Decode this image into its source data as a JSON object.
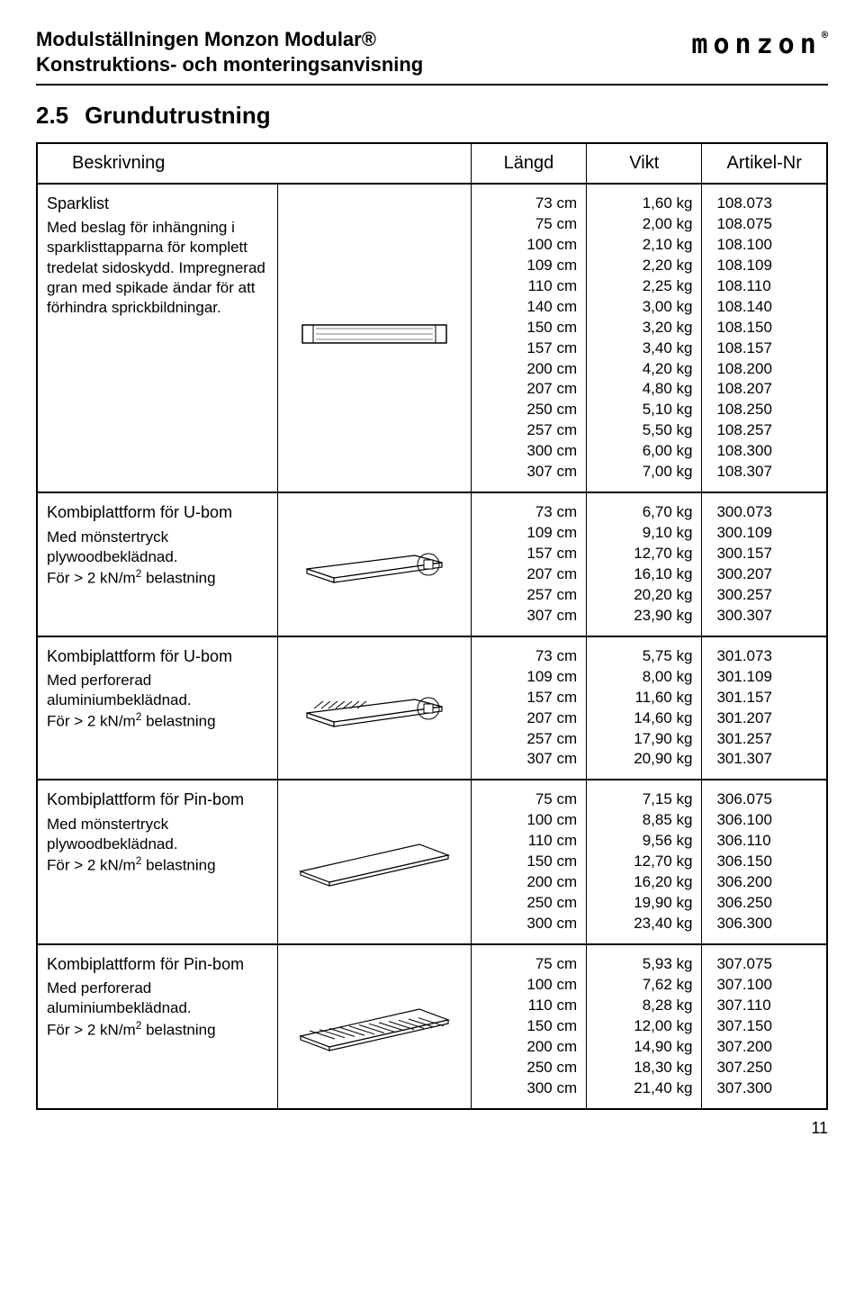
{
  "header": {
    "line1": "Modulställningen Monzon Modular®",
    "line2": "Konstruktions- och monteringsanvisning",
    "logo_text": "monzon",
    "logo_reg": "®"
  },
  "section": {
    "number": "2.5",
    "title": "Grundutrustning"
  },
  "columns": {
    "desc": "Beskrivning",
    "length": "Längd",
    "weight": "Vikt",
    "article": "Artikel-Nr"
  },
  "rows": [
    {
      "desc_title": "Sparklist",
      "desc_body": "Med beslag för inhängning i sparklisttapparna för komplett tredelat sidoskydd. Impregnerad gran med spikade ändar för att förhindra sprickbildningar.",
      "diagram": "sparklist",
      "length": [
        "73 cm",
        "75 cm",
        "100 cm",
        "109 cm",
        "110 cm",
        "140 cm",
        "150 cm",
        "157 cm",
        "200 cm",
        "207 cm",
        "250 cm",
        "257 cm",
        "300 cm",
        "307 cm"
      ],
      "weight": [
        "1,60 kg",
        "2,00 kg",
        "2,10 kg",
        "2,20 kg",
        "2,25 kg",
        "3,00 kg",
        "3,20 kg",
        "3,40 kg",
        "4,20 kg",
        "4,80 kg",
        "5,10 kg",
        "5,50 kg",
        "6,00 kg",
        "7,00 kg"
      ],
      "article": [
        "108.073",
        "108.075",
        "108.100",
        "108.109",
        "108.110",
        "108.140",
        "108.150",
        "108.157",
        "108.200",
        "108.207",
        "108.250",
        "108.257",
        "108.300",
        "108.307"
      ]
    },
    {
      "desc_title": "Kombiplattform för U-bom",
      "desc_body": "Med mönstertryck plywoodbeklädnad.\nFör > 2 kN/m² belastning",
      "diagram": "plywood-u",
      "length": [
        "73 cm",
        "109 cm",
        "157 cm",
        "207 cm",
        "257 cm",
        "307 cm"
      ],
      "weight": [
        "6,70 kg",
        "9,10 kg",
        "12,70 kg",
        "16,10 kg",
        "20,20 kg",
        "23,90 kg"
      ],
      "article": [
        "300.073",
        "300.109",
        "300.157",
        "300.207",
        "300.257",
        "300.307"
      ]
    },
    {
      "desc_title": "Kombiplattform för U-bom",
      "desc_body": "Med perforerad aluminiumbeklädnad.\nFör > 2 kN/m² belastning",
      "diagram": "alu-u",
      "length": [
        "73 cm",
        "109 cm",
        "157 cm",
        "207 cm",
        "257 cm",
        "307 cm"
      ],
      "weight": [
        "5,75 kg",
        "8,00 kg",
        "11,60 kg",
        "14,60 kg",
        "17,90 kg",
        "20,90 kg"
      ],
      "article": [
        "301.073",
        "301.109",
        "301.157",
        "301.207",
        "301.257",
        "301.307"
      ]
    },
    {
      "desc_title": "Kombiplattform för Pin-bom",
      "desc_body": "Med mönstertryck plywoodbeklädnad.\nFör > 2 kN/m² belastning",
      "diagram": "plywood-pin",
      "length": [
        "75 cm",
        "100 cm",
        "110 cm",
        "150 cm",
        "200 cm",
        "250 cm",
        "300 cm"
      ],
      "weight": [
        "7,15 kg",
        "8,85 kg",
        "9,56 kg",
        "12,70 kg",
        "16,20 kg",
        "19,90 kg",
        "23,40 kg"
      ],
      "article": [
        "306.075",
        "306.100",
        "306.110",
        "306.150",
        "306.200",
        "306.250",
        "306.300"
      ]
    },
    {
      "desc_title": "Kombiplattform för Pin-bom",
      "desc_body": "Med perforerad aluminiumbeklädnad.\nFör > 2 kN/m² belastning",
      "diagram": "alu-pin",
      "length": [
        "75 cm",
        "100 cm",
        "110 cm",
        "150 cm",
        "200 cm",
        "250 cm",
        "300 cm"
      ],
      "weight": [
        "5,93 kg",
        "7,62 kg",
        "8,28 kg",
        "12,00 kg",
        "14,90 kg",
        "18,30 kg",
        "21,40 kg"
      ],
      "article": [
        "307.075",
        "307.100",
        "307.110",
        "307.150",
        "307.200",
        "307.250",
        "307.300"
      ]
    }
  ],
  "page_number": "11",
  "diagrams": {
    "stroke": "#000000",
    "fill": "#ffffff"
  }
}
